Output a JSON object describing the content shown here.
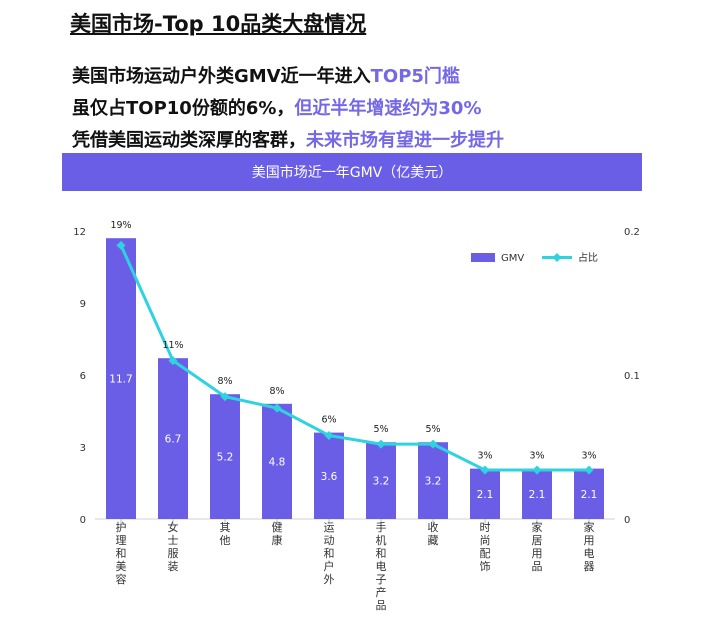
{
  "page_title": "美国市场-Top 10品类大盘情况",
  "headlines": [
    {
      "text": "美国市场运动户外类GMV近一年进入",
      "highlight": "TOP5门槛"
    },
    {
      "text": "虽仅占TOP10份额的6%，",
      "highlight": "但近半年增速约为30%"
    },
    {
      "text": "凭借美国运动类深厚的客群，",
      "highlight": "未来市场有望进一步提升"
    }
  ],
  "colors": {
    "bar": "#6b5ee6",
    "line": "#2fd3e0",
    "banner": "#6b5ee6",
    "highlight": "#7468e8"
  },
  "chart_data": {
    "type": "bar",
    "title": "美国市场近一年GMV（亿美元）",
    "categories": [
      "护理和美容",
      "女士服装",
      "其他",
      "健康",
      "运动和户外",
      "手机和电子产品",
      "收藏",
      "时尚配饰",
      "家居用品",
      "家用电器"
    ],
    "series": [
      {
        "name": "GMV",
        "type": "bar",
        "axis": "left",
        "values": [
          11.7,
          6.7,
          5.2,
          4.8,
          3.6,
          3.2,
          3.2,
          2.1,
          2.1,
          2.1
        ],
        "labels": [
          "11.7",
          "6.7",
          "5.2",
          "4.8",
          "3.6",
          "3.2",
          "3.2",
          "2.1",
          "2.1",
          "2.1"
        ]
      },
      {
        "name": "占比",
        "type": "line",
        "axis": "right",
        "values": [
          0.19,
          0.11,
          0.085,
          0.077,
          0.058,
          0.052,
          0.052,
          0.034,
          0.034,
          0.034
        ],
        "labels": [
          "19%",
          "11%",
          "8%",
          "8%",
          "6%",
          "5%",
          "5%",
          "3%",
          "3%",
          "3%"
        ]
      }
    ],
    "y_left": {
      "min": 0,
      "max": 12,
      "ticks": [
        "0",
        "3",
        "6",
        "9",
        "12"
      ]
    },
    "y_right": {
      "min": 0,
      "max": 0.2,
      "ticks": [
        "0",
        "0.1",
        "0.2"
      ]
    },
    "legend": {
      "position": "top-right",
      "items": [
        "GMV",
        "占比"
      ]
    },
    "grid": false
  }
}
